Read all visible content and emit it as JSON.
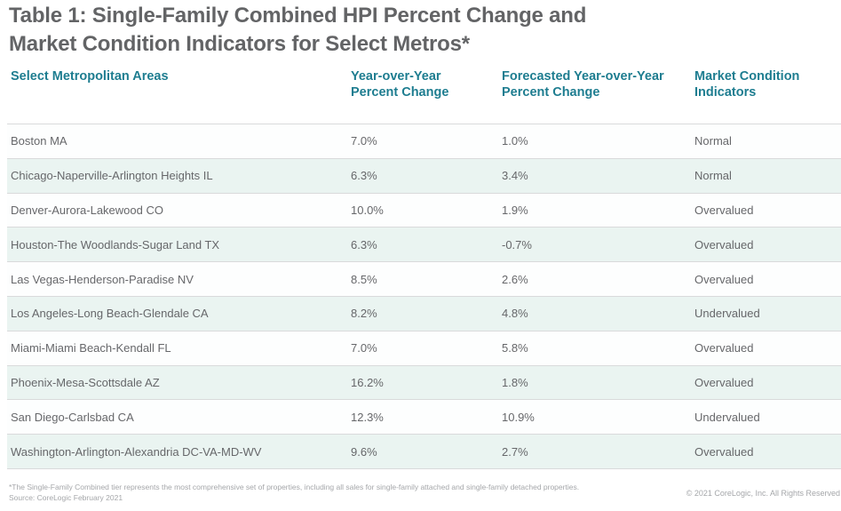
{
  "title": {
    "full": "Table 1: Single-Family Combined HPI Percent Change and Market Condition Indicators for Select Metros*",
    "line1": "Table 1: Single-Family Combined HPI Percent Change and",
    "line2": "Market Condition Indicators for Select Metros*"
  },
  "chart_data": {
    "type": "table",
    "title": "Table 1: Single-Family Combined HPI Percent Change and Market Condition Indicators for Select Metros*",
    "columns": [
      "Select Metropolitan Areas",
      "Year-over-Year Percent Change",
      "Forecasted Year-over-Year Percent Change",
      "Market Condition Indicators"
    ],
    "rows": [
      {
        "metro": "Boston MA",
        "yoy": "7.0%",
        "forecast": "1.0%",
        "condition": "Normal"
      },
      {
        "metro": "Chicago-Naperville-Arlington Heights IL",
        "yoy": "6.3%",
        "forecast": "3.4%",
        "condition": "Normal"
      },
      {
        "metro": "Denver-Aurora-Lakewood CO",
        "yoy": "10.0%",
        "forecast": "1.9%",
        "condition": "Overvalued"
      },
      {
        "metro": "Houston-The Woodlands-Sugar Land TX",
        "yoy": "6.3%",
        "forecast": "-0.7%",
        "condition": "Overvalued"
      },
      {
        "metro": "Las Vegas-Henderson-Paradise NV",
        "yoy": "8.5%",
        "forecast": "2.6%",
        "condition": "Overvalued"
      },
      {
        "metro": "Los Angeles-Long Beach-Glendale CA",
        "yoy": "8.2%",
        "forecast": "4.8%",
        "condition": "Undervalued"
      },
      {
        "metro": "Miami-Miami Beach-Kendall FL",
        "yoy": "7.0%",
        "forecast": "5.8%",
        "condition": "Overvalued"
      },
      {
        "metro": "Phoenix-Mesa-Scottsdale AZ",
        "yoy": "16.2%",
        "forecast": "1.8%",
        "condition": "Overvalued"
      },
      {
        "metro": "San Diego-Carlsbad CA",
        "yoy": "12.3%",
        "forecast": "10.9%",
        "condition": "Undervalued"
      },
      {
        "metro": "Washington-Arlington-Alexandria DC-VA-MD-WV",
        "yoy": "9.6%",
        "forecast": "2.7%",
        "condition": "Overvalued"
      }
    ]
  },
  "headers": {
    "metro": {
      "line1": "Select Metropolitan Areas",
      "line2": ""
    },
    "yoy": {
      "line1": "Year-over-Year",
      "line2": "Percent Change"
    },
    "forecast": {
      "line1": "Forecasted Year-over-Year",
      "line2": "Percent Change"
    },
    "condition": {
      "line1": "Market Condition",
      "line2": "Indicators"
    }
  },
  "footer": {
    "footnote": "*The Single-Family Combined tier represents the most comprehensive set of properties, including all sales for single-family attached and single-family detached properties.",
    "source": "Source: CoreLogic February 2021",
    "copyright": "© 2021 CoreLogic, Inc. All Rights Reserved"
  },
  "colors": {
    "accent_teal": "#1E7D90",
    "title_gray": "#636466",
    "body_text_gray": "#66676A",
    "row_shaded": "#EAF4F1",
    "row_plain": "#FDFEFE",
    "divider": "#D9DADB",
    "footnote_gray": "#A5A7AA"
  }
}
